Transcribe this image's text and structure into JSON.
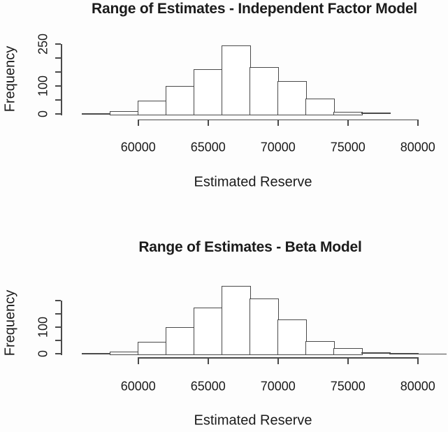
{
  "page": {
    "background": "#fdfdfd",
    "ink": "#4a4a4a",
    "text_color": "#1b1b1b"
  },
  "chart_data": [
    {
      "type": "bar",
      "subtype": "histogram",
      "title": "Range of Estimates - Independent Factor Model",
      "xlabel": "Estimated Reserve",
      "ylabel": "Frequency",
      "bin_start": 56000,
      "bin_width": 2000,
      "counts": [
        2,
        10,
        48,
        100,
        160,
        245,
        168,
        118,
        55,
        8,
        5
      ],
      "xlim": [
        56000,
        80000
      ],
      "ylim": [
        0,
        250
      ],
      "grid": false,
      "legend": false,
      "bar_fill": "#ffffff",
      "bar_stroke": "#4a4a4a",
      "x_ticks": [
        {
          "v": 60000,
          "label": "60000"
        },
        {
          "v": 65000,
          "label": "65000"
        },
        {
          "v": 70000,
          "label": "70000"
        },
        {
          "v": 75000,
          "label": "75000"
        },
        {
          "v": 80000,
          "label": "80000"
        }
      ],
      "y_ticks": [
        {
          "v": 0,
          "label": "0"
        },
        {
          "v": 50,
          "label": ""
        },
        {
          "v": 100,
          "label": "100"
        },
        {
          "v": 150,
          "label": ""
        },
        {
          "v": 200,
          "label": ""
        },
        {
          "v": 250,
          "label": "250"
        }
      ]
    },
    {
      "type": "bar",
      "subtype": "histogram",
      "title": "Range of Estimates - Beta Model",
      "xlabel": "Estimated Reserve",
      "ylabel": "Frequency",
      "bin_start": 56000,
      "bin_width": 2000,
      "counts": [
        2,
        8,
        45,
        100,
        175,
        255,
        208,
        128,
        48,
        22,
        5,
        2,
        1
      ],
      "xlim": [
        56000,
        82000
      ],
      "ylim": [
        0,
        200
      ],
      "grid": false,
      "legend": false,
      "bar_fill": "#ffffff",
      "bar_stroke": "#4a4a4a",
      "x_ticks": [
        {
          "v": 60000,
          "label": "60000"
        },
        {
          "v": 65000,
          "label": "65000"
        },
        {
          "v": 70000,
          "label": "70000"
        },
        {
          "v": 75000,
          "label": "75000"
        },
        {
          "v": 80000,
          "label": "80000"
        }
      ],
      "y_ticks": [
        {
          "v": 0,
          "label": "0"
        },
        {
          "v": 50,
          "label": ""
        },
        {
          "v": 100,
          "label": "100"
        },
        {
          "v": 150,
          "label": ""
        },
        {
          "v": 200,
          "label": ""
        }
      ]
    }
  ]
}
